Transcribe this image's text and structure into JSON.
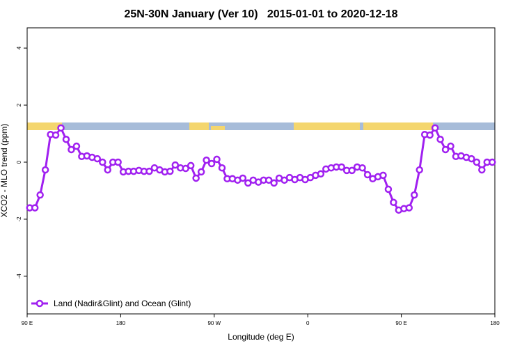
{
  "chart_data": {
    "type": "line",
    "title": "25N-30N January (Ver 10)   2015-01-01 to 2020-12-18",
    "xlabel": "Longitude (deg E)",
    "ylabel": "XCO2 - MLO trend (ppm)",
    "x": [
      92.5,
      97.5,
      102.5,
      107.5,
      112.5,
      117.5,
      122.5,
      127.5,
      132.5,
      137.5,
      142.5,
      147.5,
      152.5,
      157.5,
      162.5,
      167.5,
      172.5,
      177.5,
      182.5,
      187.5,
      192.5,
      197.5,
      202.5,
      207.5,
      212.5,
      217.5,
      222.5,
      227.5,
      232.5,
      237.5,
      242.5,
      247.5,
      252.5,
      257.5,
      262.5,
      267.5,
      272.5,
      277.5,
      282.5,
      287.5,
      292.5,
      297.5,
      302.5,
      307.5,
      312.5,
      317.5,
      322.5,
      327.5,
      332.5,
      337.5,
      342.5,
      347.5,
      352.5,
      357.5,
      362.5,
      367.5,
      372.5,
      377.5,
      382.5,
      387.5,
      392.5,
      397.5,
      402.5,
      407.5,
      412.5,
      417.5,
      422.5,
      427.5,
      432.5,
      437.5,
      442.5,
      447.5,
      452.5,
      457.5,
      462.5,
      467.5,
      472.5,
      477.5,
      482.5,
      487.5,
      492.5,
      497.5,
      502.5,
      507.5,
      512.5,
      517.5,
      522.5,
      527.5,
      532.5,
      537.5
    ],
    "series": [
      {
        "name": "Land (Nadir&Glint) and Ocean (Glint)",
        "color": "#a020f0",
        "values": [
          -1.6,
          -1.6,
          -1.15,
          -0.27,
          0.97,
          0.95,
          1.2,
          0.8,
          0.44,
          0.56,
          0.2,
          0.22,
          0.17,
          0.12,
          0.0,
          -0.27,
          0.0,
          0.0,
          -0.34,
          -0.32,
          -0.32,
          -0.29,
          -0.32,
          -0.32,
          -0.2,
          -0.27,
          -0.34,
          -0.32,
          -0.1,
          -0.2,
          -0.22,
          -0.12,
          -0.56,
          -0.34,
          0.07,
          -0.05,
          0.1,
          -0.2,
          -0.58,
          -0.58,
          -0.63,
          -0.56,
          -0.73,
          -0.63,
          -0.7,
          -0.63,
          -0.63,
          -0.73,
          -0.56,
          -0.63,
          -0.54,
          -0.61,
          -0.54,
          -0.61,
          -0.54,
          -0.46,
          -0.41,
          -0.24,
          -0.2,
          -0.17,
          -0.17,
          -0.29,
          -0.29,
          -0.17,
          -0.2,
          -0.44,
          -0.58,
          -0.51,
          -0.46,
          -0.95,
          -1.41,
          -1.68,
          -1.63,
          -1.6,
          -1.15,
          -0.27,
          0.97,
          0.95,
          1.2,
          0.8,
          0.44,
          0.56,
          0.2,
          0.22,
          0.17,
          0.12,
          0.0,
          -0.27,
          0.0,
          0.0
        ]
      }
    ],
    "xlim": [
      90,
      540
    ],
    "xticks": [
      {
        "value": 90,
        "label": "90 E"
      },
      {
        "value": 180,
        "label": "180"
      },
      {
        "value": 270,
        "label": "90 W"
      },
      {
        "value": 360,
        "label": "0"
      },
      {
        "value": 450,
        "label": "90 E"
      },
      {
        "value": 540,
        "label": "180"
      }
    ],
    "ylim": [
      -5.32,
      4.71
    ],
    "yticks": [
      -4,
      -2,
      0,
      2,
      4
    ],
    "legend": "bottom-left"
  }
}
